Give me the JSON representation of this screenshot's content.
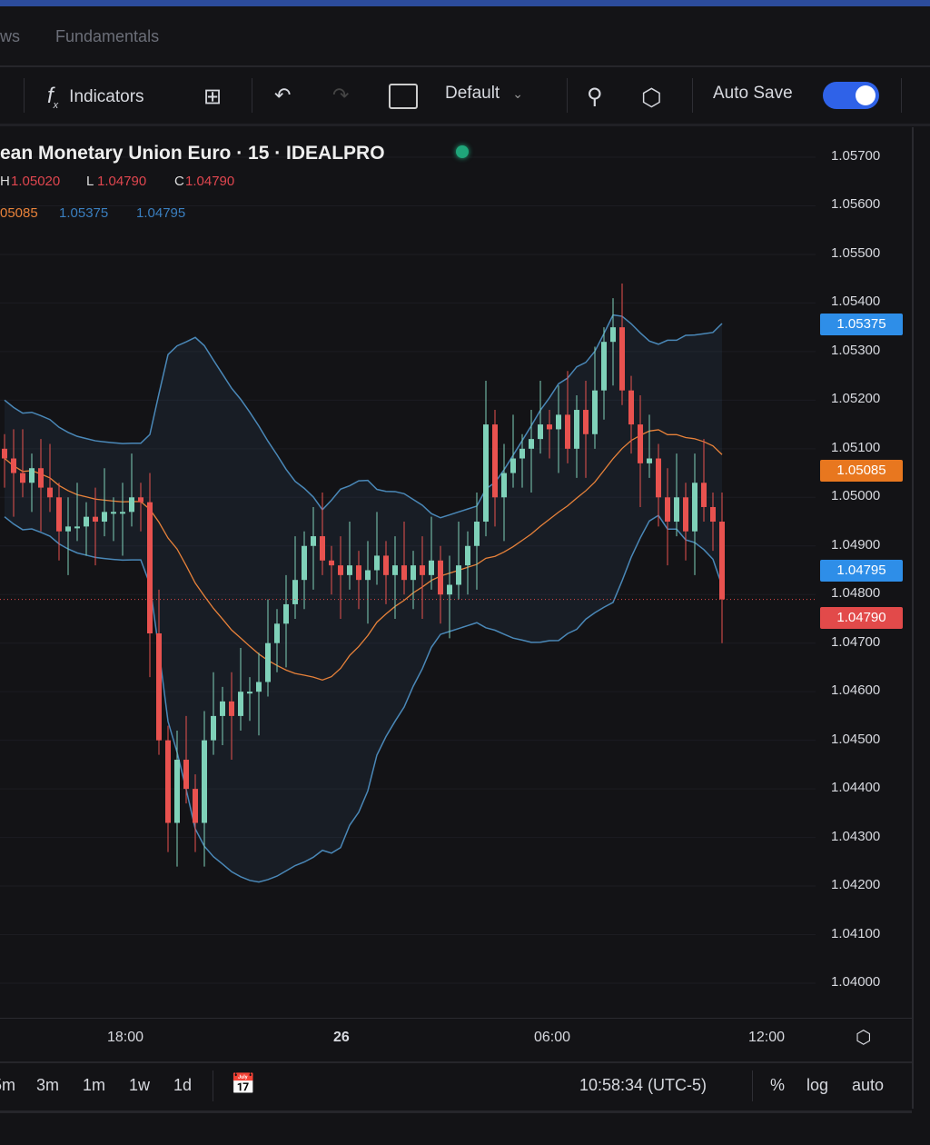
{
  "tabs": [
    "ws",
    "Fundamentals"
  ],
  "toolbar": {
    "indicators": "Indicators",
    "layout": "Default",
    "autosave": "Auto Save",
    "autosave_on": true
  },
  "legend": {
    "title": "ean Monetary Union Euro · 15 · IDEALPRO",
    "status_color": "#1fa67a",
    "h_label": "H",
    "h": "1.05020",
    "l_label": "L",
    "l": "1.04790",
    "c_label": "C",
    "c": "1.04790",
    "bb_basis": "05085",
    "bb_upper": "1.05375",
    "bb_lower": "1.04795"
  },
  "price_axis": [
    "1.05700",
    "1.05600",
    "1.05500",
    "1.05400",
    "1.05300",
    "1.05200",
    "1.05100",
    "1.05000",
    "1.04900",
    "1.04800",
    "1.04700",
    "1.04600",
    "1.04500",
    "1.04400",
    "1.04300",
    "1.04200",
    "1.04100",
    "1.04000"
  ],
  "price_tags": [
    {
      "value": "1.05375",
      "price": 1.05375,
      "color": "#2e8ee8"
    },
    {
      "value": "1.05085",
      "price": 1.05085,
      "color": "#e8771f"
    },
    {
      "value": "1.04795",
      "price": 1.04795,
      "color": "#2e8ee8"
    },
    {
      "value": "1.04790",
      "price": 1.0479,
      "color": "#e24a4a"
    }
  ],
  "time_axis": [
    "18:00",
    "26",
    "06:00",
    "12:00"
  ],
  "bottom": {
    "ranges": [
      "5m",
      "3m",
      "1m",
      "1w",
      "1d"
    ],
    "clock": "10:58:34 (UTC-5)",
    "percent": "%",
    "log": "log",
    "auto": "auto"
  },
  "colors": {
    "up": "#7fd1b9",
    "down": "#e8524f",
    "basis": "#e8823a",
    "bands": "#4a88b8"
  },
  "chart_data": {
    "type": "candlestick",
    "y_range": [
      1.0395,
      1.0575
    ],
    "closes": [
      1.0508,
      1.0505,
      1.0503,
      1.0506,
      1.0502,
      1.05,
      1.0493,
      1.0494,
      1.0494,
      1.0496,
      1.0495,
      1.0497,
      1.0497,
      1.0497,
      1.05,
      1.0499,
      1.0472,
      1.045,
      1.0433,
      1.0446,
      1.044,
      1.0433,
      1.045,
      1.0455,
      1.0458,
      1.0455,
      1.046,
      1.046,
      1.0462,
      1.047,
      1.0474,
      1.0478,
      1.0483,
      1.049,
      1.0492,
      1.0487,
      1.0486,
      1.0484,
      1.0486,
      1.0483,
      1.0485,
      1.0488,
      1.0484,
      1.0486,
      1.0483,
      1.0486,
      1.0484,
      1.0487,
      1.048,
      1.0482,
      1.0486,
      1.049,
      1.0495,
      1.0515,
      1.05,
      1.0505,
      1.0508,
      1.051,
      1.0512,
      1.0515,
      1.0514,
      1.0517,
      1.051,
      1.0518,
      1.0513,
      1.0522,
      1.0532,
      1.0535,
      1.0522,
      1.0515,
      1.0507,
      1.0508,
      1.05,
      1.0495,
      1.05,
      1.0493,
      1.0503,
      1.0498,
      1.0495,
      1.0479
    ]
  }
}
